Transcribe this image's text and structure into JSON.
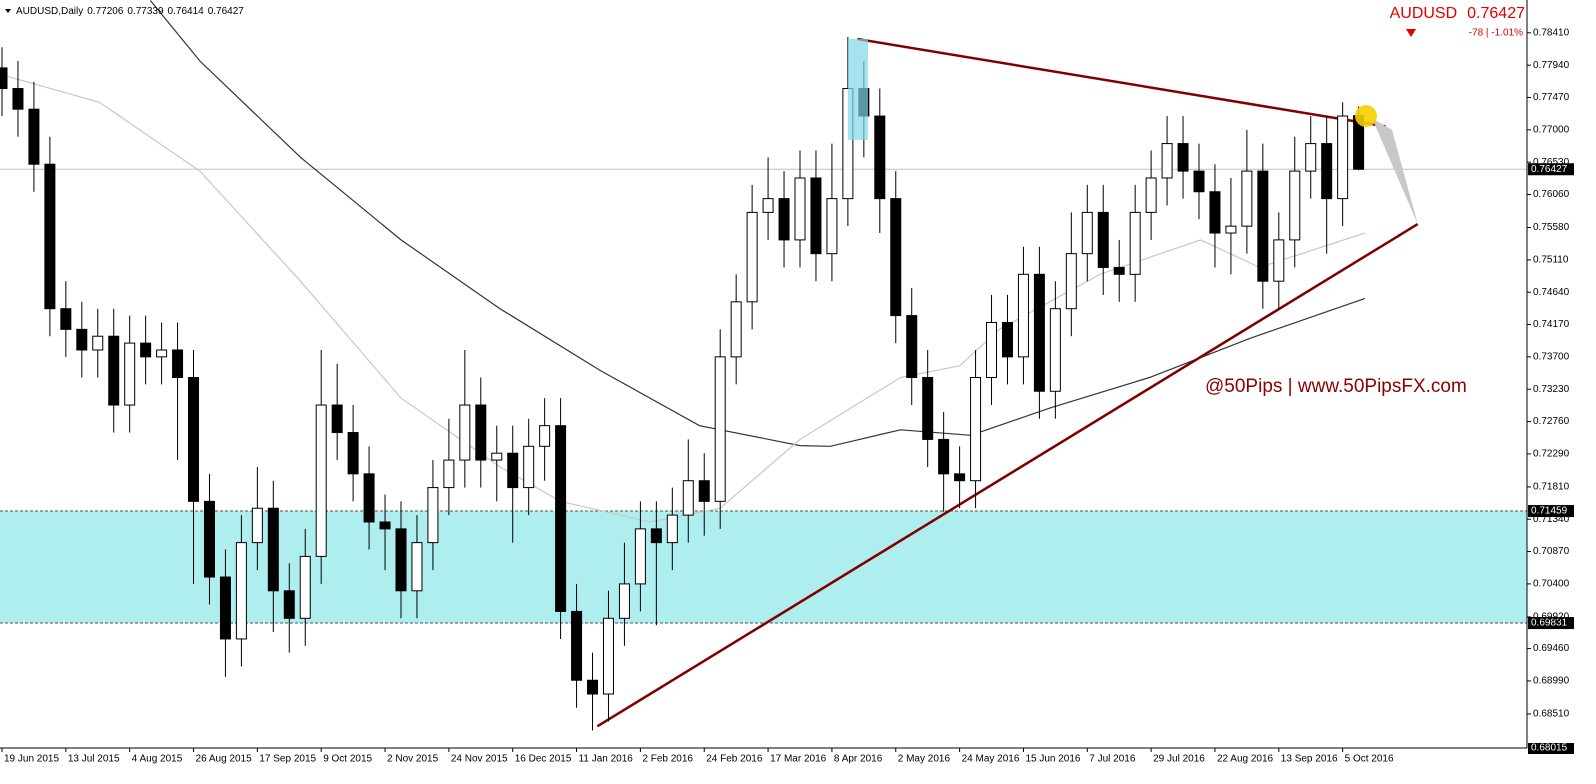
{
  "chart_data": {
    "type": "candlestick",
    "symbol": "AUDUSD,Daily",
    "header_ohlc": [
      0.77206,
      0.77339,
      0.76414,
      0.76427
    ],
    "quote_symbol": "AUDUSD",
    "price": 0.76427,
    "change": "-78 | -1.01%",
    "watermark": "@50Pips | www.50PipsFX.com",
    "ylim": [
      0.68015,
      0.78887
    ],
    "yticks": [
      {
        "value": 0.7841,
        "label": "0.78410"
      },
      {
        "value": 0.7794,
        "label": "0.77940"
      },
      {
        "value": 0.7747,
        "label": "0.77470"
      },
      {
        "value": 0.77,
        "label": "0.77000"
      },
      {
        "value": 0.7653,
        "label": "0.76530"
      },
      {
        "value": 0.7606,
        "label": "0.76060"
      },
      {
        "value": 0.7558,
        "label": "0.75580"
      },
      {
        "value": 0.7511,
        "label": "0.75110"
      },
      {
        "value": 0.7464,
        "label": "0.74640"
      },
      {
        "value": 0.7417,
        "label": "0.74170"
      },
      {
        "value": 0.737,
        "label": "0.73700"
      },
      {
        "value": 0.7323,
        "label": "0.73230"
      },
      {
        "value": 0.7276,
        "label": "0.72760"
      },
      {
        "value": 0.7229,
        "label": "0.72290"
      },
      {
        "value": 0.7181,
        "label": "0.71810"
      },
      {
        "value": 0.7134,
        "label": "0.71340"
      },
      {
        "value": 0.7087,
        "label": "0.70870"
      },
      {
        "value": 0.704,
        "label": "0.70400"
      },
      {
        "value": 0.6992,
        "label": "0.69920"
      },
      {
        "value": 0.6946,
        "label": "0.69460"
      },
      {
        "value": 0.6899,
        "label": "0.68990"
      },
      {
        "value": 0.6851,
        "label": "0.68510"
      }
    ],
    "zone": [
      0.69831,
      0.71459
    ],
    "zone_color": "#afeeee",
    "categories": [
      "19 Jun 2015",
      null,
      null,
      null,
      "13 Jul 2015",
      null,
      null,
      null,
      "4 Aug 2015",
      null,
      null,
      null,
      "26 Aug 2015",
      null,
      null,
      null,
      "17 Sep 2015",
      null,
      null,
      null,
      "9 Oct 2015",
      null,
      null,
      null,
      "2 Nov 2015",
      null,
      null,
      null,
      "24 Nov 2015",
      null,
      null,
      null,
      "16 Dec 2015",
      null,
      null,
      null,
      "11 Jan 2016",
      null,
      null,
      null,
      "2 Feb 2016",
      null,
      null,
      null,
      "24 Feb 2016",
      null,
      null,
      null,
      "17 Mar 2016",
      null,
      null,
      null,
      "8 Apr 2016",
      null,
      null,
      null,
      "2 May 2016",
      null,
      null,
      null,
      "24 May 2016",
      null,
      null,
      null,
      "15 Jun 2016",
      null,
      null,
      null,
      "7 Jul 2016",
      null,
      null,
      null,
      "29 Jul 2016",
      null,
      null,
      null,
      "22 Aug 2016",
      null,
      null,
      null,
      "13 Sep 2016",
      null,
      null,
      null,
      "5 Oct 2016",
      null
    ],
    "open": [
      0.779,
      0.776,
      0.773,
      0.765,
      0.744,
      0.741,
      0.738,
      0.74,
      0.73,
      0.739,
      0.737,
      0.738,
      0.734,
      0.716,
      0.705,
      0.696,
      0.71,
      0.715,
      0.703,
      0.699,
      0.708,
      0.73,
      0.726,
      0.72,
      0.713,
      0.712,
      0.703,
      0.71,
      0.718,
      0.722,
      0.73,
      0.722,
      0.723,
      0.718,
      0.724,
      0.727,
      0.7,
      0.69,
      0.688,
      0.699,
      0.704,
      0.712,
      0.71,
      0.714,
      0.719,
      0.716,
      0.737,
      0.745,
      0.758,
      0.76,
      0.754,
      0.763,
      0.752,
      0.76,
      0.776,
      0.772,
      0.76,
      0.743,
      0.734,
      0.725,
      0.72,
      0.719,
      0.734,
      0.742,
      0.737,
      0.749,
      0.732,
      0.744,
      0.752,
      0.758,
      0.75,
      0.749,
      0.758,
      0.763,
      0.768,
      0.764,
      0.761,
      0.755,
      0.756,
      0.764,
      0.748,
      0.754,
      0.764,
      0.768,
      0.76,
      0.77206
    ],
    "high": [
      0.782,
      0.78,
      0.777,
      0.769,
      0.748,
      0.745,
      0.744,
      0.744,
      0.743,
      0.743,
      0.742,
      0.742,
      0.738,
      0.72,
      0.709,
      0.714,
      0.721,
      0.719,
      0.707,
      0.712,
      0.738,
      0.736,
      0.73,
      0.724,
      0.717,
      0.716,
      0.714,
      0.722,
      0.728,
      0.738,
      0.734,
      0.727,
      0.727,
      0.728,
      0.731,
      0.731,
      0.704,
      0.694,
      0.703,
      0.71,
      0.716,
      0.716,
      0.718,
      0.725,
      0.723,
      0.741,
      0.749,
      0.762,
      0.766,
      0.764,
      0.767,
      0.767,
      0.768,
      0.7835,
      0.78,
      0.776,
      0.764,
      0.747,
      0.738,
      0.729,
      0.724,
      0.738,
      0.746,
      0.746,
      0.753,
      0.753,
      0.748,
      0.758,
      0.762,
      0.762,
      0.754,
      0.762,
      0.767,
      0.772,
      0.772,
      0.768,
      0.765,
      0.763,
      0.77,
      0.768,
      0.758,
      0.769,
      0.772,
      0.772,
      0.774,
      0.77339
    ],
    "low": [
      0.772,
      0.769,
      0.761,
      0.74,
      0.737,
      0.734,
      0.734,
      0.726,
      0.726,
      0.733,
      0.733,
      0.722,
      0.704,
      0.701,
      0.6905,
      0.692,
      0.706,
      0.697,
      0.694,
      0.695,
      0.704,
      0.722,
      0.716,
      0.709,
      0.706,
      0.699,
      0.699,
      0.706,
      0.714,
      0.718,
      0.718,
      0.716,
      0.71,
      0.714,
      0.719,
      0.696,
      0.686,
      0.6827,
      0.684,
      0.695,
      0.7,
      0.698,
      0.706,
      0.71,
      0.711,
      0.712,
      0.733,
      0.741,
      0.754,
      0.75,
      0.75,
      0.748,
      0.748,
      0.756,
      0.766,
      0.755,
      0.739,
      0.73,
      0.721,
      0.7145,
      0.715,
      0.715,
      0.73,
      0.733,
      0.733,
      0.728,
      0.728,
      0.74,
      0.748,
      0.746,
      0.745,
      0.745,
      0.754,
      0.759,
      0.76,
      0.757,
      0.75,
      0.749,
      0.752,
      0.744,
      0.744,
      0.75,
      0.76,
      0.752,
      0.756,
      0.76414
    ],
    "close": [
      0.776,
      0.773,
      0.765,
      0.744,
      0.741,
      0.738,
      0.74,
      0.73,
      0.739,
      0.737,
      0.738,
      0.734,
      0.716,
      0.705,
      0.696,
      0.71,
      0.715,
      0.703,
      0.699,
      0.708,
      0.73,
      0.726,
      0.72,
      0.713,
      0.712,
      0.703,
      0.71,
      0.718,
      0.722,
      0.73,
      0.722,
      0.723,
      0.718,
      0.724,
      0.727,
      0.7,
      0.69,
      0.688,
      0.699,
      0.704,
      0.712,
      0.71,
      0.714,
      0.719,
      0.716,
      0.737,
      0.745,
      0.758,
      0.76,
      0.754,
      0.763,
      0.752,
      0.76,
      0.776,
      0.772,
      0.76,
      0.743,
      0.734,
      0.725,
      0.72,
      0.719,
      0.734,
      0.742,
      0.737,
      0.749,
      0.732,
      0.744,
      0.752,
      0.758,
      0.75,
      0.749,
      0.758,
      0.763,
      0.768,
      0.764,
      0.761,
      0.755,
      0.756,
      0.764,
      0.748,
      0.754,
      0.764,
      0.768,
      0.76,
      0.772,
      0.76427
    ],
    "overlays": [
      {
        "color": "#333333",
        "x": [
          9.3,
          12.4,
          18.7,
          25,
          31.2,
          37.5,
          43.7,
          50,
          51.9,
          56.3,
          60.7,
          65.7,
          71.9,
          78.2,
          85.4
        ],
        "values": [
          0.7888,
          0.78,
          0.766,
          0.754,
          0.744,
          0.735,
          0.727,
          0.7241,
          0.724,
          0.7264,
          0.7256,
          0.7296,
          0.734,
          0.7397,
          0.7455
        ]
      },
      {
        "color": "#c8c8c8",
        "x": [
          0,
          6.1,
          12.4,
          18.7,
          25,
          31.2,
          35,
          40.6,
          45,
          50,
          56.3,
          60,
          62.5,
          68.8,
          75.1,
          78.8,
          85.4
        ],
        "values": [
          0.778,
          0.774,
          0.764,
          0.748,
          0.731,
          0.721,
          0.716,
          0.713,
          0.715,
          0.725,
          0.734,
          0.7357,
          0.741,
          0.749,
          0.754,
          0.75,
          0.755
        ]
      },
      {
        "color": "#800000",
        "x": [
          53.6,
          86.7
        ],
        "values": [
          0.7832,
          0.7705
        ]
      },
      {
        "color": "#800000",
        "x": [
          37.3,
          88.7
        ],
        "values": [
          0.6833,
          0.7563
        ]
      }
    ]
  }
}
